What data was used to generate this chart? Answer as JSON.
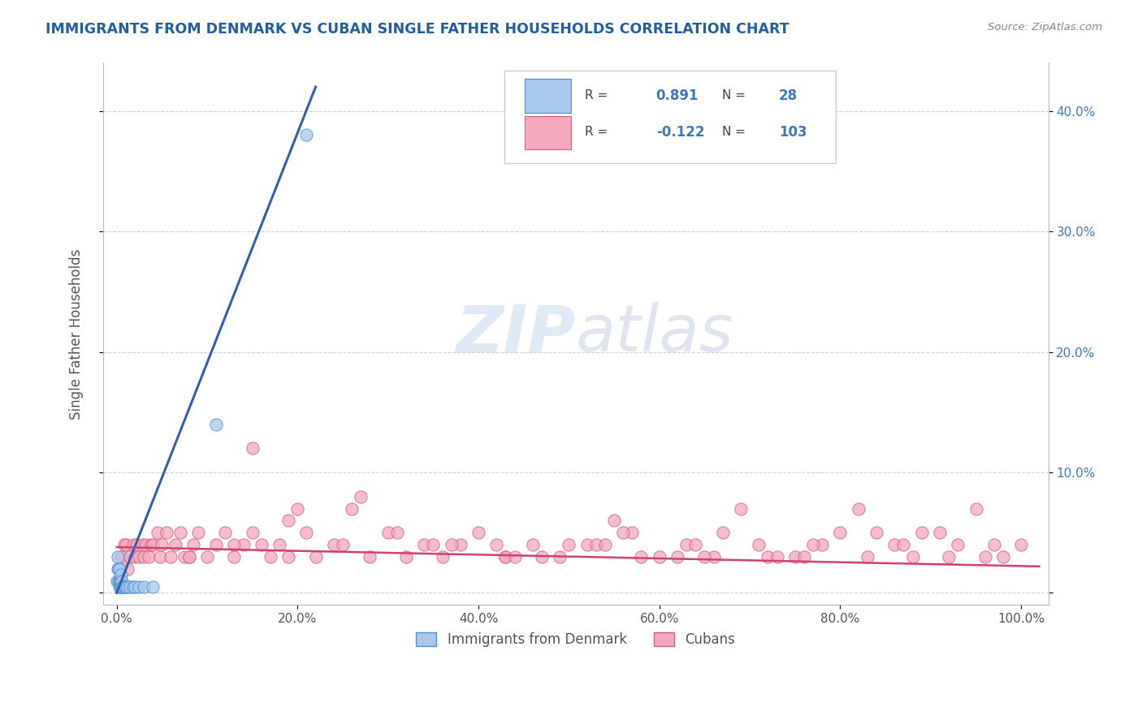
{
  "title": "IMMIGRANTS FROM DENMARK VS CUBAN SINGLE FATHER HOUSEHOLDS CORRELATION CHART",
  "source": "Source: ZipAtlas.com",
  "ylabel": "Single Father Households",
  "watermark_zip": "ZIP",
  "watermark_atlas": "atlas",
  "legend": {
    "blue_label": "Immigrants from Denmark",
    "pink_label": "Cubans",
    "blue_R": "0.891",
    "blue_N": "28",
    "pink_R": "-0.122",
    "pink_N": "103"
  },
  "blue_color": "#a8c8ec",
  "pink_color": "#f4a8bc",
  "blue_edge_color": "#5090cc",
  "pink_edge_color": "#d06080",
  "blue_line_color": "#3060b0",
  "pink_line_color": "#d04070",
  "ytick_vals": [
    0.0,
    0.1,
    0.2,
    0.3,
    0.4
  ],
  "ytick_labels": [
    "",
    "10.0%",
    "20.0%",
    "30.0%",
    "40.0%"
  ],
  "xtick_vals": [
    0.0,
    0.2,
    0.4,
    0.6,
    0.8,
    1.0
  ],
  "xtick_labels": [
    "0.0%",
    "20.0%",
    "40.0%",
    "60.0%",
    "80.0%",
    "100.0%"
  ],
  "xlim": [
    -0.015,
    1.03
  ],
  "ylim": [
    -0.01,
    0.44
  ],
  "blue_scatter_x": [
    0.0,
    0.001,
    0.001,
    0.002,
    0.002,
    0.003,
    0.003,
    0.003,
    0.004,
    0.004,
    0.005,
    0.005,
    0.005,
    0.006,
    0.006,
    0.007,
    0.008,
    0.009,
    0.01,
    0.012,
    0.015,
    0.018,
    0.02,
    0.025,
    0.03,
    0.04,
    0.11,
    0.21
  ],
  "blue_scatter_y": [
    0.01,
    0.02,
    0.03,
    0.01,
    0.02,
    0.005,
    0.01,
    0.02,
    0.005,
    0.01,
    0.005,
    0.01,
    0.015,
    0.005,
    0.01,
    0.005,
    0.005,
    0.005,
    0.005,
    0.005,
    0.005,
    0.005,
    0.005,
    0.005,
    0.005,
    0.005,
    0.14,
    0.38
  ],
  "pink_scatter_x": [
    0.005,
    0.008,
    0.01,
    0.012,
    0.015,
    0.018,
    0.02,
    0.022,
    0.025,
    0.028,
    0.03,
    0.032,
    0.035,
    0.038,
    0.04,
    0.045,
    0.048,
    0.05,
    0.055,
    0.06,
    0.065,
    0.07,
    0.075,
    0.08,
    0.085,
    0.09,
    0.1,
    0.11,
    0.12,
    0.13,
    0.14,
    0.15,
    0.16,
    0.17,
    0.18,
    0.19,
    0.2,
    0.21,
    0.22,
    0.24,
    0.26,
    0.28,
    0.3,
    0.32,
    0.34,
    0.36,
    0.38,
    0.4,
    0.43,
    0.46,
    0.49,
    0.52,
    0.55,
    0.58,
    0.6,
    0.63,
    0.66,
    0.69,
    0.72,
    0.75,
    0.78,
    0.8,
    0.83,
    0.86,
    0.89,
    0.92,
    0.95,
    0.98,
    1.0,
    0.42,
    0.47,
    0.53,
    0.57,
    0.62,
    0.67,
    0.71,
    0.76,
    0.82,
    0.87,
    0.91,
    0.96,
    0.25,
    0.31,
    0.37,
    0.43,
    0.5,
    0.56,
    0.64,
    0.73,
    0.84,
    0.93,
    0.08,
    0.13,
    0.19,
    0.27,
    0.35,
    0.44,
    0.54,
    0.65,
    0.77,
    0.88,
    0.97,
    0.15
  ],
  "pink_scatter_y": [
    0.03,
    0.04,
    0.04,
    0.02,
    0.03,
    0.04,
    0.03,
    0.04,
    0.03,
    0.04,
    0.03,
    0.04,
    0.03,
    0.04,
    0.04,
    0.05,
    0.03,
    0.04,
    0.05,
    0.03,
    0.04,
    0.05,
    0.03,
    0.03,
    0.04,
    0.05,
    0.03,
    0.04,
    0.05,
    0.03,
    0.04,
    0.05,
    0.04,
    0.03,
    0.04,
    0.06,
    0.07,
    0.05,
    0.03,
    0.04,
    0.07,
    0.03,
    0.05,
    0.03,
    0.04,
    0.03,
    0.04,
    0.05,
    0.03,
    0.04,
    0.03,
    0.04,
    0.06,
    0.03,
    0.03,
    0.04,
    0.03,
    0.07,
    0.03,
    0.03,
    0.04,
    0.05,
    0.03,
    0.04,
    0.05,
    0.03,
    0.07,
    0.03,
    0.04,
    0.04,
    0.03,
    0.04,
    0.05,
    0.03,
    0.05,
    0.04,
    0.03,
    0.07,
    0.04,
    0.05,
    0.03,
    0.04,
    0.05,
    0.04,
    0.03,
    0.04,
    0.05,
    0.04,
    0.03,
    0.05,
    0.04,
    0.03,
    0.04,
    0.03,
    0.08,
    0.04,
    0.03,
    0.04,
    0.03,
    0.04,
    0.03,
    0.04,
    0.12
  ],
  "background_color": "#ffffff",
  "grid_color": "#cccccc",
  "title_color": "#2060a0",
  "axis_label_color": "#555555",
  "tick_color": "#3a7abf",
  "legend_box_color": "#f0f4f8",
  "legend_edge_color": "#cccccc"
}
